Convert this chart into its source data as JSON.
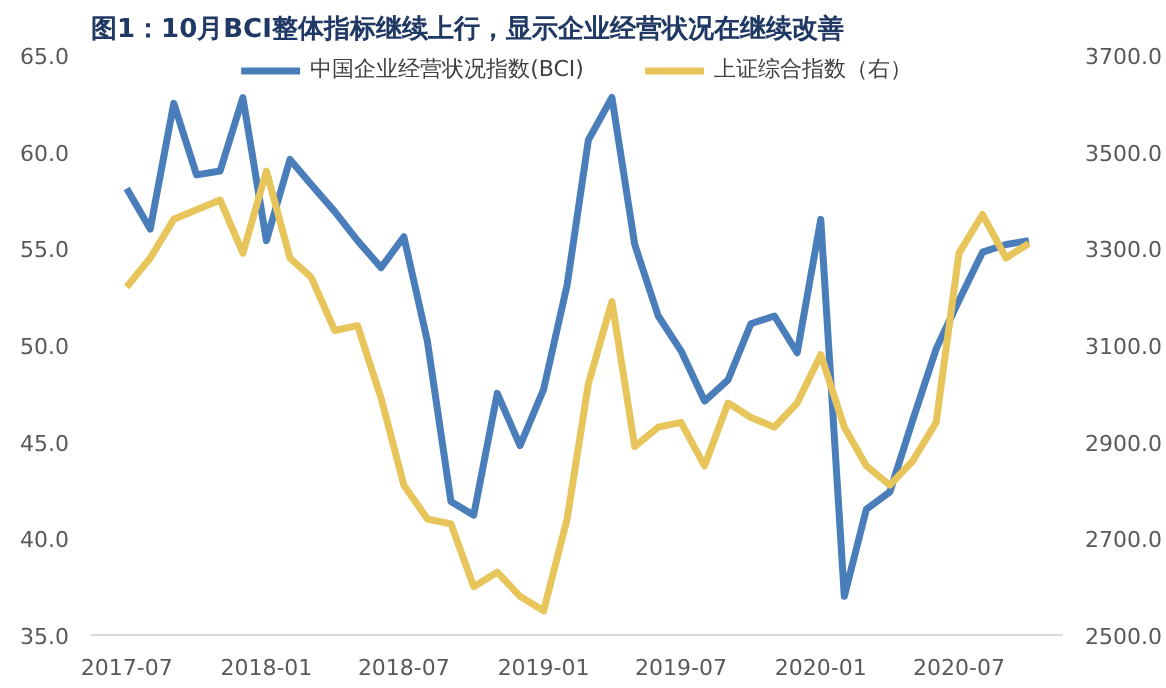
{
  "chart_data": {
    "type": "line",
    "title": "图1：10月BCI整体指标继续上行，显示企业经营状况在继续改善",
    "x": [
      "2017-07",
      "2017-08",
      "2017-09",
      "2017-10",
      "2017-11",
      "2017-12",
      "2018-01",
      "2018-02",
      "2018-03",
      "2018-04",
      "2018-05",
      "2018-06",
      "2018-07",
      "2018-08",
      "2018-09",
      "2018-10",
      "2018-11",
      "2018-12",
      "2019-01",
      "2019-02",
      "2019-03",
      "2019-04",
      "2019-05",
      "2019-06",
      "2019-07",
      "2019-08",
      "2019-09",
      "2019-10",
      "2019-11",
      "2019-12",
      "2020-01",
      "2020-02",
      "2020-03",
      "2020-04",
      "2020-05",
      "2020-06",
      "2020-07",
      "2020-08",
      "2020-09",
      "2020-10"
    ],
    "series": [
      {
        "name": "中国企业经营状况指数(BCI)",
        "color": "#4a7ebb",
        "values": [
          58.1,
          56.0,
          62.5,
          58.8,
          59.0,
          62.8,
          55.4,
          59.6,
          58.3,
          56.9,
          55.4,
          54.0,
          55.6,
          50.2,
          41.9,
          41.2,
          47.5,
          44.8,
          47.7,
          53.1,
          60.6,
          62.8,
          55.2,
          51.5,
          49.7,
          47.1,
          48.2,
          51.1,
          51.5,
          49.6,
          56.5,
          37.0,
          41.5,
          42.4,
          46.1,
          49.8,
          52.3,
          54.8,
          55.2,
          55.4
        ]
      },
      {
        "name": "上证综合指数（右）",
        "color": "#e8c55a",
        "axis": "y2",
        "values": [
          3220,
          3280,
          3360,
          3380,
          3400,
          3290,
          3460,
          3280,
          3240,
          3130,
          3140,
          2990,
          2810,
          2740,
          2730,
          2600,
          2630,
          2580,
          2550,
          2740,
          3020,
          3190,
          2890,
          2930,
          2940,
          2850,
          2980,
          2950,
          2930,
          2980,
          3080,
          2930,
          2850,
          2810,
          2860,
          2940,
          3290,
          3370,
          3280,
          3310
        ]
      }
    ],
    "xlim": [
      "2017-05-15",
      "2020-11-15"
    ],
    "xticks": [
      {
        "value": "2017-07",
        "label": "2017-07"
      },
      {
        "value": "2018-01",
        "label": "2018-01"
      },
      {
        "value": "2018-07",
        "label": "2018-07"
      },
      {
        "value": "2019-01",
        "label": "2019-01"
      },
      {
        "value": "2019-07",
        "label": "2019-07"
      },
      {
        "value": "2020-01",
        "label": "2020-01"
      },
      {
        "value": "2020-07",
        "label": "2020-07"
      }
    ],
    "ylim": [
      35,
      65
    ],
    "yticks": [
      {
        "value": 35,
        "label": "35.0"
      },
      {
        "value": 40,
        "label": "40.0"
      },
      {
        "value": 45,
        "label": "45.0"
      },
      {
        "value": 50,
        "label": "50.0"
      },
      {
        "value": 55,
        "label": "55.0"
      },
      {
        "value": 60,
        "label": "60.0"
      },
      {
        "value": 65,
        "label": "65.0"
      }
    ],
    "y2lim": [
      2500,
      3700
    ],
    "y2ticks": [
      {
        "value": 2500,
        "label": "2500.0"
      },
      {
        "value": 2700,
        "label": "2700.0"
      },
      {
        "value": 2900,
        "label": "2900.0"
      },
      {
        "value": 3100,
        "label": "3100.0"
      },
      {
        "value": 3300,
        "label": "3300.0"
      },
      {
        "value": 3500,
        "label": "3500.0"
      },
      {
        "value": 3700,
        "label": "3700.0"
      }
    ],
    "legend": "top",
    "grid": false,
    "marker": "none",
    "line_style": "solid"
  }
}
